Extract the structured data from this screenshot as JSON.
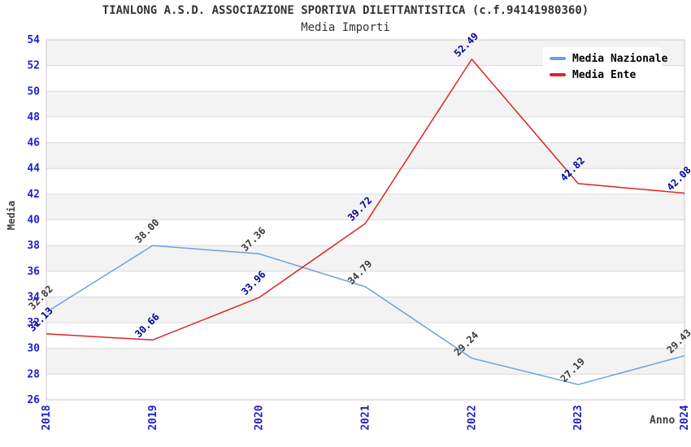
{
  "chart_data": {
    "type": "line",
    "title": "TIANLONG A.S.D. ASSOCIAZIONE SPORTIVA DILETTANTISTICA (c.f.94141980360)",
    "subtitle": "Media Importi",
    "xlabel": "Anno",
    "ylabel": "Media",
    "x": [
      "2018",
      "2019",
      "2020",
      "2021",
      "2022",
      "2023",
      "2024"
    ],
    "ylim": [
      26,
      54
    ],
    "ytick_step": 2,
    "yticks": [
      26,
      28,
      30,
      32,
      34,
      36,
      38,
      40,
      42,
      44,
      46,
      48,
      50,
      52,
      54
    ],
    "grid": "horizontal-bands-on",
    "legend_position": "top-right-inside",
    "series": [
      {
        "name": "Media Nazionale",
        "color": "#6BA1DF",
        "label_color": "#3a3a3a",
        "values": [
          32.82,
          38.0,
          37.36,
          34.79,
          29.24,
          27.19,
          29.43
        ]
      },
      {
        "name": "Media Ente",
        "color": "#E02323",
        "label_color": "#000099",
        "values": [
          31.13,
          30.66,
          33.96,
          39.72,
          52.49,
          42.82,
          42.08
        ]
      }
    ]
  },
  "style_colors": {
    "band_gray": "#f3f3f3",
    "gridline": "#dadada",
    "plot_border": "#c9c9c9",
    "tick_label_blue": "#1f1fcc",
    "axis_title_gray": "#404040"
  }
}
